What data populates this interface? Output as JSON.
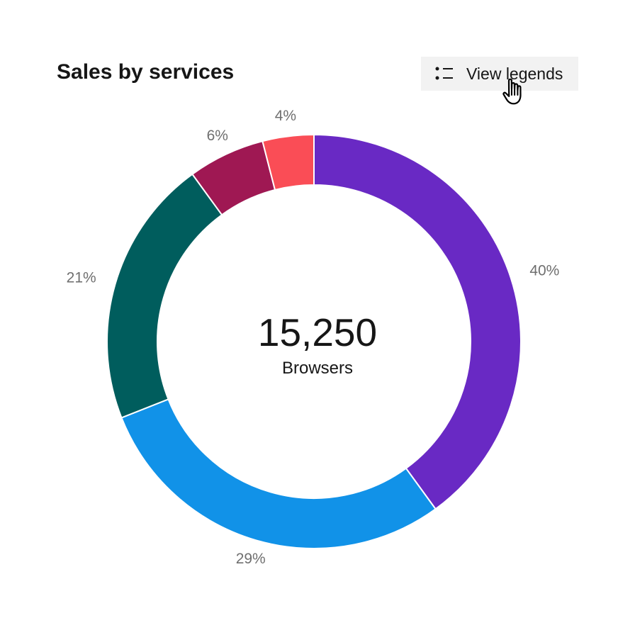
{
  "chart_data": {
    "type": "pie",
    "title": "Sales by services",
    "center": {
      "value": "15,250",
      "label": "Browsers"
    },
    "legend": {
      "button_label": "View legends",
      "visible": false
    },
    "slices": [
      {
        "value": 40,
        "label": "40%",
        "color": "#6929c4"
      },
      {
        "value": 29,
        "label": "29%",
        "color": "#1192e8"
      },
      {
        "value": 21,
        "label": "21%",
        "color": "#005d5d"
      },
      {
        "value": 6,
        "label": "6%",
        "color": "#9f1853"
      },
      {
        "value": 4,
        "label": "4%",
        "color": "#fa4d56"
      }
    ]
  },
  "icons": {
    "legend": "list-icon",
    "cursor": "pointer-hand-icon"
  }
}
